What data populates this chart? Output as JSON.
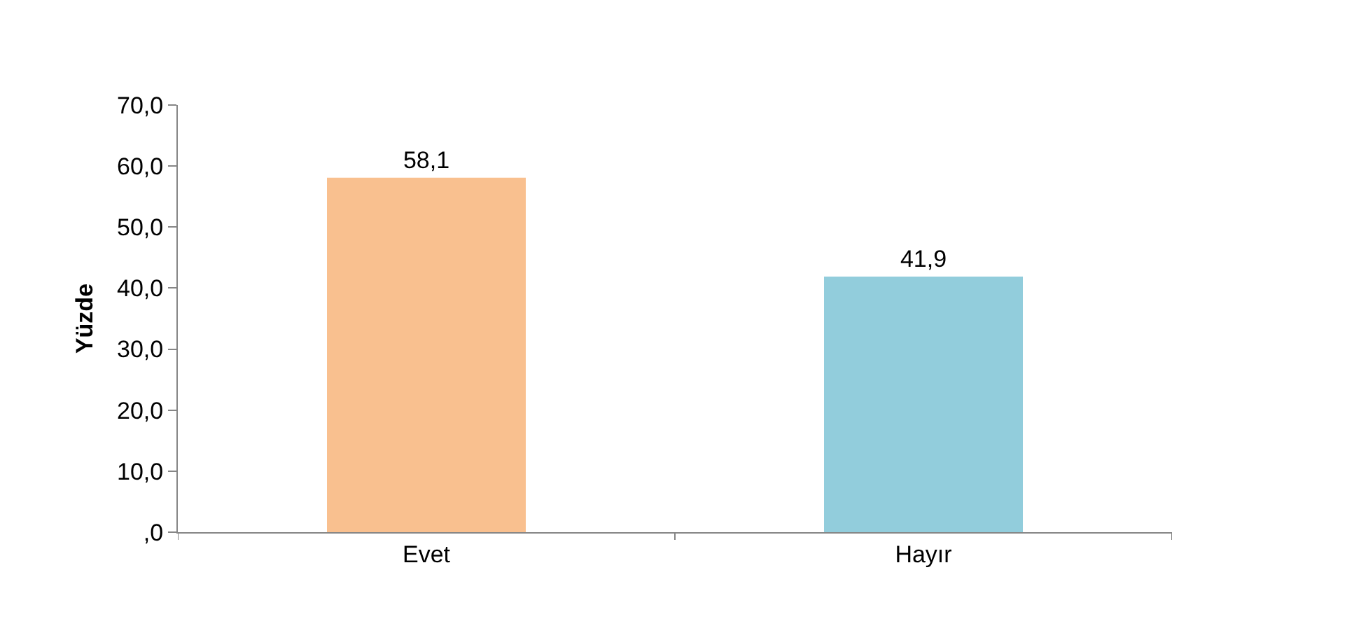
{
  "chart_data": {
    "type": "bar",
    "ylabel": "Yüzde",
    "categories": [
      "Evet",
      "Hayır"
    ],
    "values": [
      58.1,
      41.9
    ],
    "colors": [
      "#f9c08f",
      "#92cddc"
    ],
    "value_labels": [
      "58,1",
      "41,9"
    ],
    "ylim": [
      0,
      70
    ],
    "yticks": [
      {
        "value": 0,
        "label": ",0"
      },
      {
        "value": 10,
        "label": "10,0"
      },
      {
        "value": 20,
        "label": "20,0"
      },
      {
        "value": 30,
        "label": "30,0"
      },
      {
        "value": 40,
        "label": "40,0"
      },
      {
        "value": 50,
        "label": "50,0"
      },
      {
        "value": 60,
        "label": "60,0"
      },
      {
        "value": 70,
        "label": "70,0"
      }
    ],
    "grid": false
  }
}
